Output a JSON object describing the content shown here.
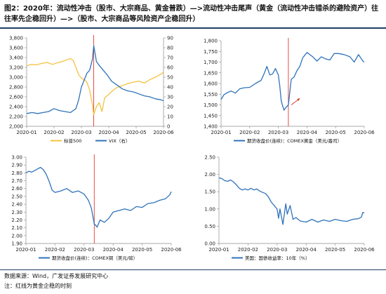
{
  "figure": {
    "title": "图2：2020年：流动性冲击（股市、大宗商品、黄金普跌）—>流动性冲击尾声（黄金（流动性冲击错杀的避险资产）往往率先企稳回升）—>（股市、大宗商品等风险资产企稳回升）",
    "source": "数据来源：Wind，广发证券发展研究中心",
    "note": "注：红线为黄金企稳的时刻"
  },
  "colors": {
    "sp500": "#f5c242",
    "blue": "#2f73ba",
    "red_line": "#e0392f",
    "red_arrow": "#d93a2e",
    "grid": "#d9d9d9",
    "axis": "#8c8c8c",
    "rule": "#1f3f66"
  },
  "chart_data": [
    {
      "type": "line",
      "categories": [
        "2020-01",
        "2020-02",
        "2020-03",
        "2020-04",
        "2020-05",
        "2020-06"
      ],
      "ylim": [
        2000,
        3800
      ],
      "yticks": [
        "2,000",
        "2,200",
        "2,400",
        "2,600",
        "2,800",
        "3,000",
        "3,200",
        "3,400",
        "3,600",
        "3,800"
      ],
      "y2lim": [
        0,
        90
      ],
      "y2ticks": [
        "0",
        "10",
        "20",
        "30",
        "40",
        "50",
        "60",
        "70",
        "80",
        "90"
      ],
      "vline_x": 2.45,
      "series": [
        {
          "name": "标普500",
          "axis": "left",
          "color": "sp500",
          "x": [
            0,
            0.15,
            0.35,
            0.55,
            0.75,
            0.95,
            1.1,
            1.3,
            1.5,
            1.6,
            1.7,
            1.8,
            1.9,
            2.0,
            2.1,
            2.2,
            2.3,
            2.4,
            2.45,
            2.55,
            2.65,
            2.75,
            2.85,
            3.0,
            3.15,
            3.3,
            3.5,
            3.7,
            3.9,
            4.1,
            4.3,
            4.5,
            4.7,
            4.9,
            5.0
          ],
          "y": [
            3230,
            3260,
            3250,
            3280,
            3300,
            3260,
            3290,
            3320,
            3360,
            3380,
            3340,
            3200,
            3050,
            2980,
            2950,
            2900,
            2740,
            2450,
            2240,
            2400,
            2480,
            2300,
            2580,
            2650,
            2730,
            2790,
            2830,
            2870,
            2900,
            2920,
            2880,
            2950,
            3000,
            3060,
            3100
          ]
        },
        {
          "name": "VIX（右）",
          "axis": "right",
          "color": "blue",
          "x": [
            0,
            0.2,
            0.4,
            0.6,
            0.8,
            1.0,
            1.2,
            1.4,
            1.6,
            1.8,
            1.9,
            2.0,
            2.1,
            2.2,
            2.3,
            2.4,
            2.45,
            2.55,
            2.65,
            2.8,
            2.95,
            3.1,
            3.3,
            3.5,
            3.7,
            3.9,
            4.1,
            4.3,
            4.5,
            4.7,
            4.9,
            5.0
          ],
          "y": [
            13,
            14,
            13,
            14,
            15,
            18,
            16,
            15,
            14,
            18,
            27,
            40,
            47,
            54,
            57,
            68,
            82,
            66,
            62,
            57,
            52,
            46,
            42,
            38,
            36,
            35,
            33,
            31,
            30,
            28,
            27,
            26
          ]
        }
      ],
      "xticklabels": [
        "2020-01",
        "2020-02",
        "2020-03",
        "2020-04",
        "2020-05",
        "2020-06"
      ]
    },
    {
      "type": "line",
      "categories": [
        "2020-01",
        "2020-02",
        "2020-03",
        "2020-04",
        "2020-05",
        "2020-06"
      ],
      "ylim": [
        1400,
        1800
      ],
      "yticks": [
        "1,400",
        "1,450",
        "1,500",
        "1,550",
        "1,600",
        "1,650",
        "1,700",
        "1,750",
        "1,800"
      ],
      "vline_x": 2.35,
      "arrow": {
        "from": [
          2.45,
          1500
        ],
        "to": [
          2.75,
          1530
        ]
      },
      "series": [
        {
          "name": "期货收盘价(连续)：COMEX黄金（美元/盎司）",
          "color": "blue",
          "x": [
            0,
            0.1,
            0.2,
            0.35,
            0.5,
            0.65,
            0.8,
            1.0,
            1.2,
            1.4,
            1.5,
            1.6,
            1.7,
            1.8,
            1.9,
            2.0,
            2.05,
            2.1,
            2.15,
            2.2,
            2.25,
            2.35,
            2.45,
            2.55,
            2.65,
            2.75,
            2.85,
            3.0,
            3.2,
            3.35,
            3.5,
            3.65,
            3.8,
            3.95,
            4.1,
            4.3,
            4.5,
            4.65,
            4.8,
            4.95,
            5.0
          ],
          "y": [
            1525,
            1548,
            1556,
            1565,
            1555,
            1575,
            1580,
            1582,
            1600,
            1615,
            1645,
            1680,
            1640,
            1645,
            1670,
            1640,
            1590,
            1520,
            1495,
            1475,
            1486,
            1500,
            1620,
            1630,
            1660,
            1680,
            1720,
            1745,
            1725,
            1705,
            1725,
            1715,
            1710,
            1740,
            1740,
            1735,
            1725,
            1700,
            1735,
            1705,
            1700
          ]
        }
      ],
      "xticklabels": [
        "2020-01",
        "2020-02",
        "2020-03",
        "2020-04",
        "2020-05",
        "2020-06"
      ]
    },
    {
      "type": "line",
      "categories": [
        "2020-01",
        "2020-02",
        "2020-03",
        "2020-04",
        "2020-05",
        "2020-06"
      ],
      "ylim": [
        1.9,
        3.0
      ],
      "yticks": [
        "1.90",
        "2.00",
        "2.10",
        "2.20",
        "2.30",
        "2.40",
        "2.50",
        "2.60",
        "2.70",
        "2.80",
        "2.90",
        "3.00"
      ],
      "vline_x": 2.35,
      "series": [
        {
          "name": "期货收盘价(连续)：COMEX铜（美元/磅）",
          "color": "blue",
          "x": [
            0,
            0.1,
            0.2,
            0.35,
            0.5,
            0.6,
            0.7,
            0.8,
            0.9,
            1.0,
            1.2,
            1.4,
            1.6,
            1.8,
            2.0,
            2.15,
            2.25,
            2.35,
            2.45,
            2.55,
            2.7,
            2.85,
            3.0,
            3.2,
            3.4,
            3.6,
            3.8,
            4.0,
            4.2,
            4.4,
            4.6,
            4.8,
            4.95,
            5.0
          ],
          "y": [
            2.8,
            2.82,
            2.81,
            2.84,
            2.87,
            2.84,
            2.78,
            2.69,
            2.58,
            2.55,
            2.57,
            2.6,
            2.55,
            2.57,
            2.53,
            2.45,
            2.35,
            2.15,
            2.11,
            2.2,
            2.17,
            2.22,
            2.3,
            2.32,
            2.34,
            2.32,
            2.37,
            2.36,
            2.41,
            2.42,
            2.45,
            2.47,
            2.52,
            2.56
          ]
        }
      ],
      "xticklabels": [
        "2020-01",
        "2020-02",
        "2020-03",
        "2020-04",
        "2020-05",
        "2020-06"
      ]
    },
    {
      "type": "line",
      "categories": [
        "2020-01",
        "2020-02",
        "2020-03",
        "2020-04",
        "2020-05",
        "2020-06"
      ],
      "ylim": [
        0,
        2.5
      ],
      "yticks": [
        "0.00",
        "0.50",
        "1.00",
        "1.50",
        "2.00",
        "2.50"
      ],
      "series": [
        {
          "name": "美国：国债收益率：10年（%）",
          "color": "blue",
          "x": [
            0,
            0.1,
            0.2,
            0.3,
            0.4,
            0.5,
            0.6,
            0.7,
            0.8,
            0.9,
            1.0,
            1.1,
            1.2,
            1.3,
            1.4,
            1.5,
            1.6,
            1.7,
            1.8,
            1.9,
            2.0,
            2.05,
            2.1,
            2.2,
            2.3,
            2.35,
            2.45,
            2.55,
            2.65,
            2.8,
            3.0,
            3.2,
            3.4,
            3.6,
            3.8,
            4.0,
            4.2,
            4.4,
            4.6,
            4.8,
            4.9,
            4.95,
            5.0
          ],
          "y": [
            1.9,
            1.88,
            1.82,
            1.8,
            1.84,
            1.78,
            1.7,
            1.6,
            1.55,
            1.58,
            1.55,
            1.6,
            1.55,
            1.58,
            1.52,
            1.48,
            1.45,
            1.35,
            1.2,
            1.1,
            1.0,
            0.73,
            1.0,
            0.55,
            1.15,
            0.85,
            1.1,
            0.7,
            0.75,
            0.65,
            0.62,
            0.7,
            0.62,
            0.68,
            0.64,
            0.7,
            0.66,
            0.64,
            0.7,
            0.72,
            0.76,
            0.9,
            0.88
          ]
        }
      ],
      "xticklabels": [
        "2020-01",
        "2020-02",
        "2020-03",
        "2020-04",
        "2020-05",
        "2020-06"
      ]
    }
  ]
}
